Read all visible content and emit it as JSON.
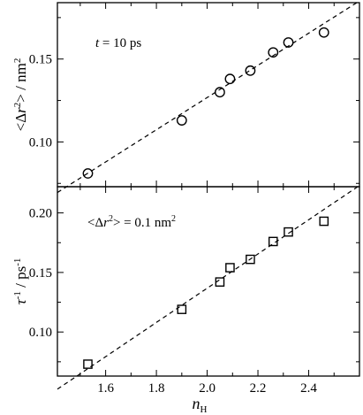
{
  "chart_data": [
    {
      "type": "scatter",
      "xlabel": "",
      "ylabel": "<Δr²> / nm²",
      "ylim": [
        0.073,
        0.184
      ],
      "xlim": [
        1.41,
        2.6
      ],
      "yticks": [
        0.1,
        0.15
      ],
      "ytick_labels": [
        "0.10",
        "0.15"
      ],
      "annotation": "t = 10 ps",
      "marker": "circle",
      "x": [
        1.53,
        1.9,
        2.05,
        2.09,
        2.17,
        2.26,
        2.32,
        2.46
      ],
      "y": [
        0.081,
        0.113,
        0.13,
        0.138,
        0.143,
        0.154,
        0.16,
        0.166
      ],
      "fit_line": {
        "x": [
          1.41,
          2.6
        ],
        "y": [
          0.0695,
          0.185
        ],
        "style": "dashed"
      }
    },
    {
      "type": "scatter",
      "xlabel": "nH",
      "ylabel": "τ⁻¹ / ps⁻¹",
      "ylim": [
        0.063,
        0.222
      ],
      "xlim": [
        1.41,
        2.6
      ],
      "xticks": [
        1.6,
        1.8,
        2.0,
        2.2,
        2.4
      ],
      "xtick_labels": [
        "1.6",
        "1.8",
        "2.0",
        "2.2",
        "2.4"
      ],
      "yticks": [
        0.1,
        0.15,
        0.2
      ],
      "ytick_labels": [
        "0.10",
        "0.15",
        "0.20"
      ],
      "annotation": "<Δr²> = 0.1 nm²",
      "marker": "square",
      "x": [
        1.53,
        1.9,
        2.05,
        2.09,
        2.17,
        2.26,
        2.32,
        2.46
      ],
      "y": [
        0.073,
        0.119,
        0.142,
        0.154,
        0.161,
        0.176,
        0.184,
        0.193
      ],
      "fit_line": {
        "x": [
          1.41,
          2.6
        ],
        "y": [
          0.052,
          0.223
        ],
        "style": "dashed"
      }
    }
  ]
}
